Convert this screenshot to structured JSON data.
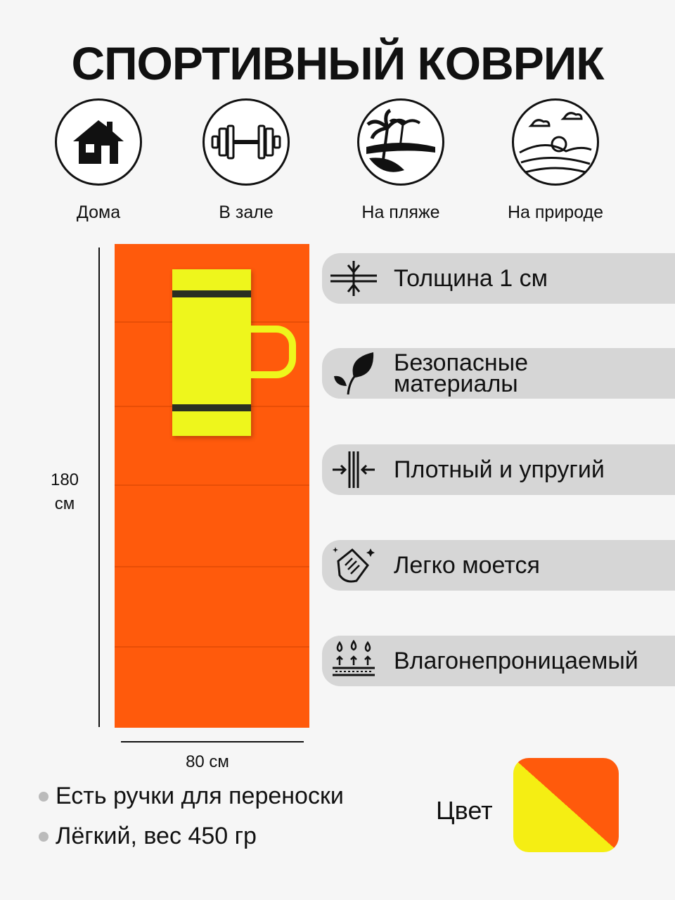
{
  "title": "СПОРТИВНЫЙ КОВРИК",
  "places": [
    {
      "label": "Дома",
      "icon": "house-icon"
    },
    {
      "label": "В зале",
      "icon": "dumbbell-icon"
    },
    {
      "label": "На пляже",
      "icon": "beach-palm-icon"
    },
    {
      "label": "На природе",
      "icon": "landscape-icon"
    }
  ],
  "dimensions": {
    "length": "180\nсм",
    "length_line1": "180",
    "length_line2": "см",
    "width": "80 см"
  },
  "features": [
    {
      "label": "Толщина 1 см",
      "icon": "thickness-icon"
    },
    {
      "label": "Безопасные материалы",
      "line1": "Безопасные",
      "line2": "материалы",
      "icon": "leaf-icon"
    },
    {
      "label": "Плотный и упругий",
      "icon": "compression-icon"
    },
    {
      "label": "Легко моется",
      "icon": "wash-hand-icon"
    },
    {
      "label": "Влагонепроницаемый",
      "icon": "waterproof-icon"
    }
  ],
  "bullets": [
    "Есть ручки для переноски",
    "Лёгкий, вес 450 гр"
  ],
  "color": {
    "label": "Цвет",
    "colors": [
      "#f5ee13",
      "#ff5a0c"
    ]
  }
}
